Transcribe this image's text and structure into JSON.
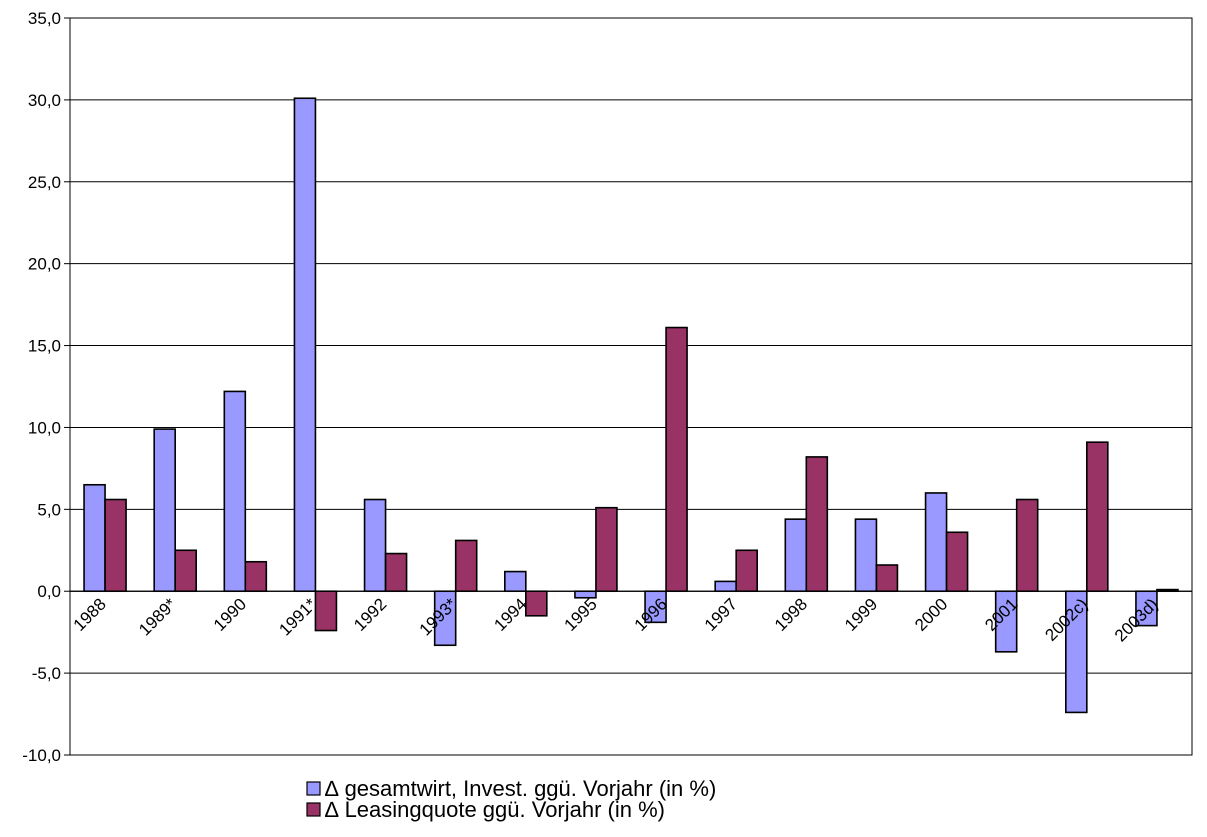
{
  "colors": {
    "series1": "#9999ff",
    "series2": "#993366",
    "grid": "#000000",
    "axis": "#000000",
    "background": "#ffffff"
  },
  "chart_data": {
    "type": "bar",
    "title": "",
    "xlabel": "",
    "ylabel": "",
    "grid": true,
    "legend_position": "bottom",
    "ylim": [
      -10,
      35
    ],
    "yticks": [
      -10,
      -5,
      0,
      5,
      10,
      15,
      20,
      25,
      30,
      35
    ],
    "ytick_labels": [
      "-10,0",
      "-5,0",
      "0,0",
      "5,0",
      "10,0",
      "15,0",
      "20,0",
      "25,0",
      "30,0",
      "35,0"
    ],
    "categories": [
      "1988",
      "1989*",
      "1990",
      "1991*",
      "1992",
      "1993*",
      "1994",
      "1995",
      "1996",
      "1997",
      "1998",
      "1999",
      "2000",
      "2001",
      "2002c)",
      "2003d)"
    ],
    "series": [
      {
        "name": "∆ gesamtwirt, Invest. ggü.  Vorjahr (in %)",
        "values": [
          6.5,
          9.9,
          12.2,
          30.1,
          5.6,
          -3.3,
          1.2,
          -0.4,
          -1.9,
          0.6,
          4.4,
          4.4,
          6.0,
          -3.7,
          -7.4,
          -2.1
        ]
      },
      {
        "name": "∆ Leasingquote ggü. Vorjahr (in %)",
        "values": [
          5.6,
          2.5,
          1.8,
          -2.4,
          2.3,
          3.1,
          -1.5,
          5.1,
          16.1,
          2.5,
          8.2,
          1.6,
          3.6,
          5.6,
          9.1,
          0.1
        ]
      }
    ]
  }
}
